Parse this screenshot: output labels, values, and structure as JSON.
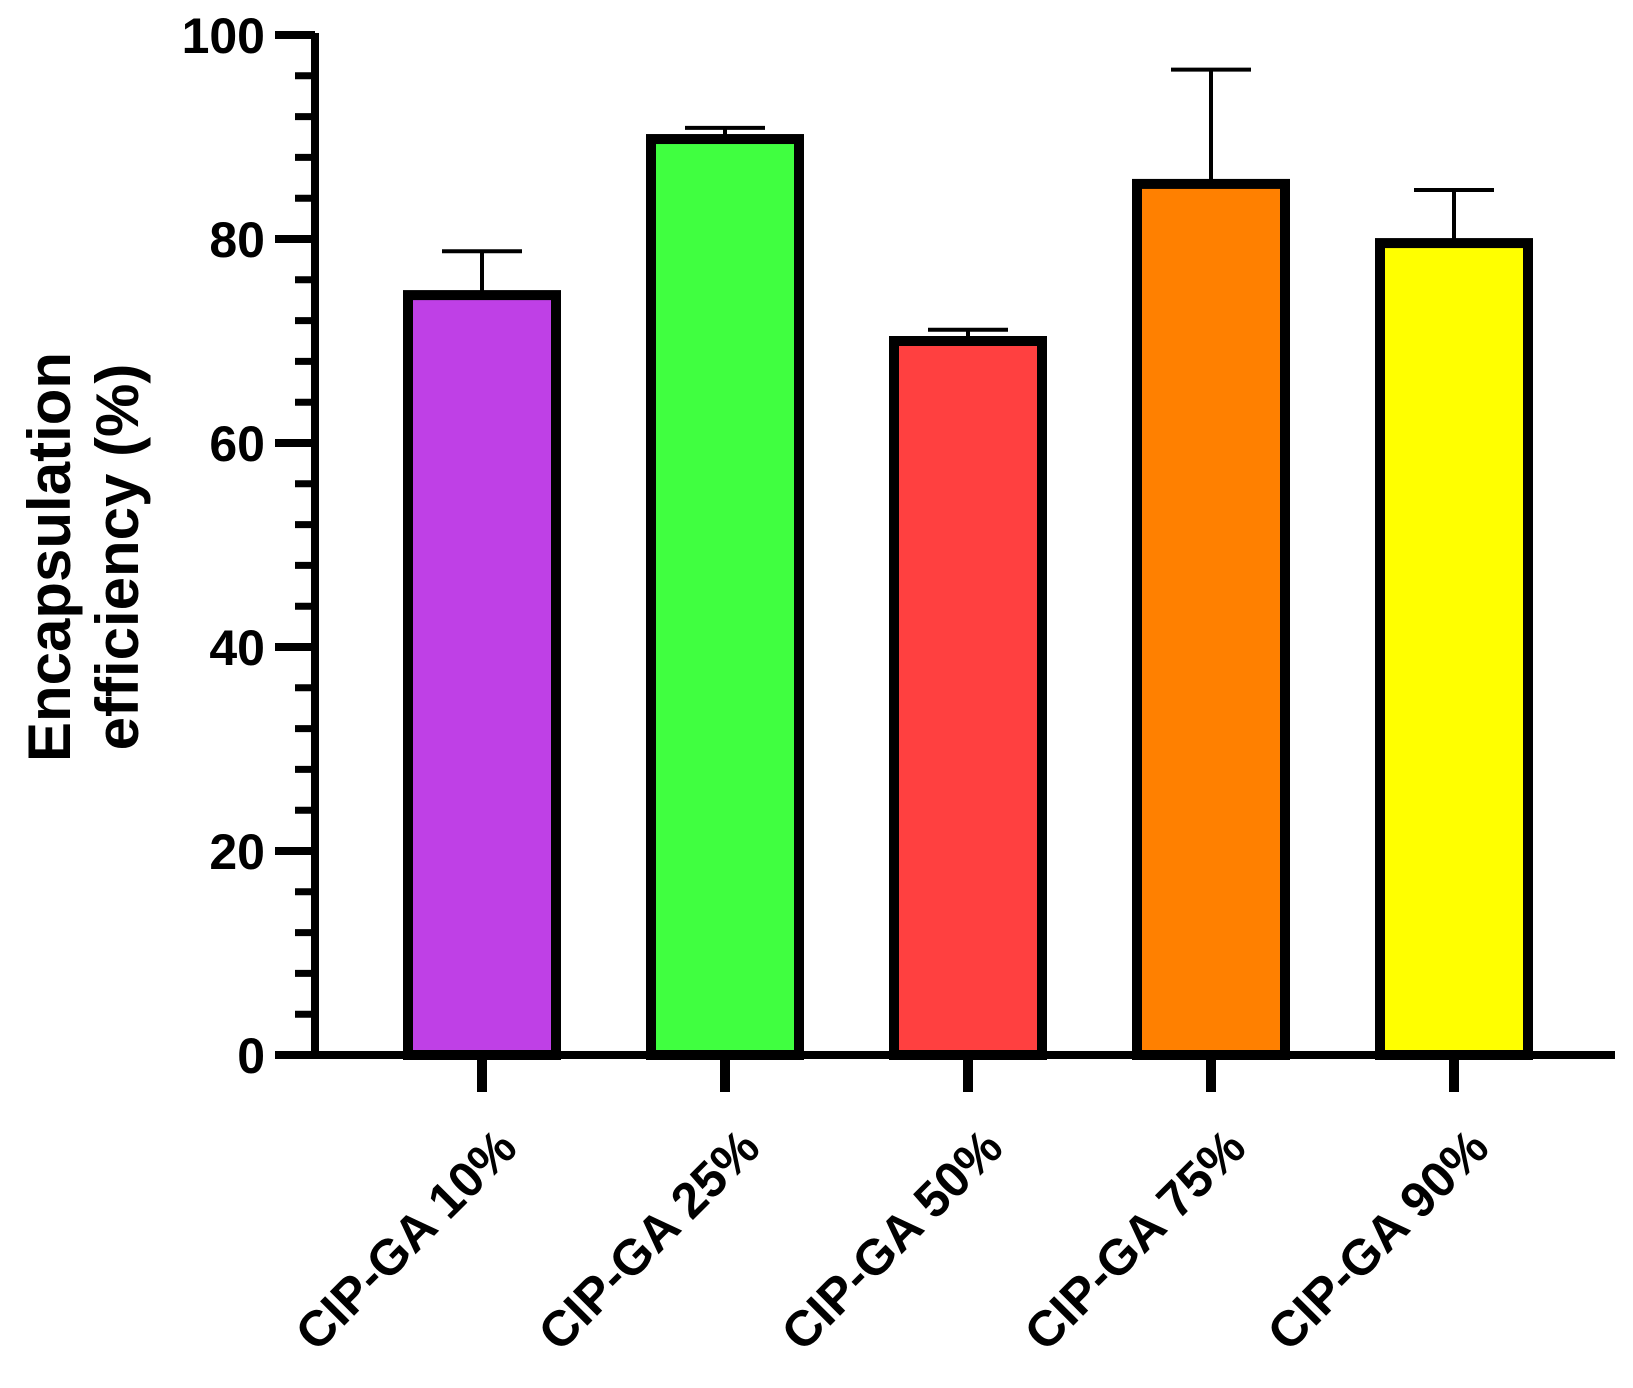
{
  "chart_data": {
    "type": "bar",
    "title": "",
    "xlabel": "",
    "ylabel_lines": [
      "Encapsulation",
      "efficiency (%)"
    ],
    "categories": [
      "CIP-GA 10%",
      "CIP-GA 25%",
      "CIP-GA 50%",
      "CIP-GA 75%",
      "CIP-GA 90%"
    ],
    "values": [
      74.5,
      89.8,
      70.0,
      85.4,
      79.6
    ],
    "error_upper": [
      78.8,
      90.9,
      71.1,
      96.6,
      84.8
    ],
    "colors": [
      "#BF40E6",
      "#40FF40",
      "#FF4040",
      "#FF8000",
      "#FFFF00"
    ],
    "edge_color": "#000000",
    "ylim": [
      0,
      100
    ],
    "y_major_ticks": [
      0,
      20,
      40,
      60,
      80,
      100
    ],
    "y_minor_step": 4,
    "grid": false,
    "legend": false
  }
}
